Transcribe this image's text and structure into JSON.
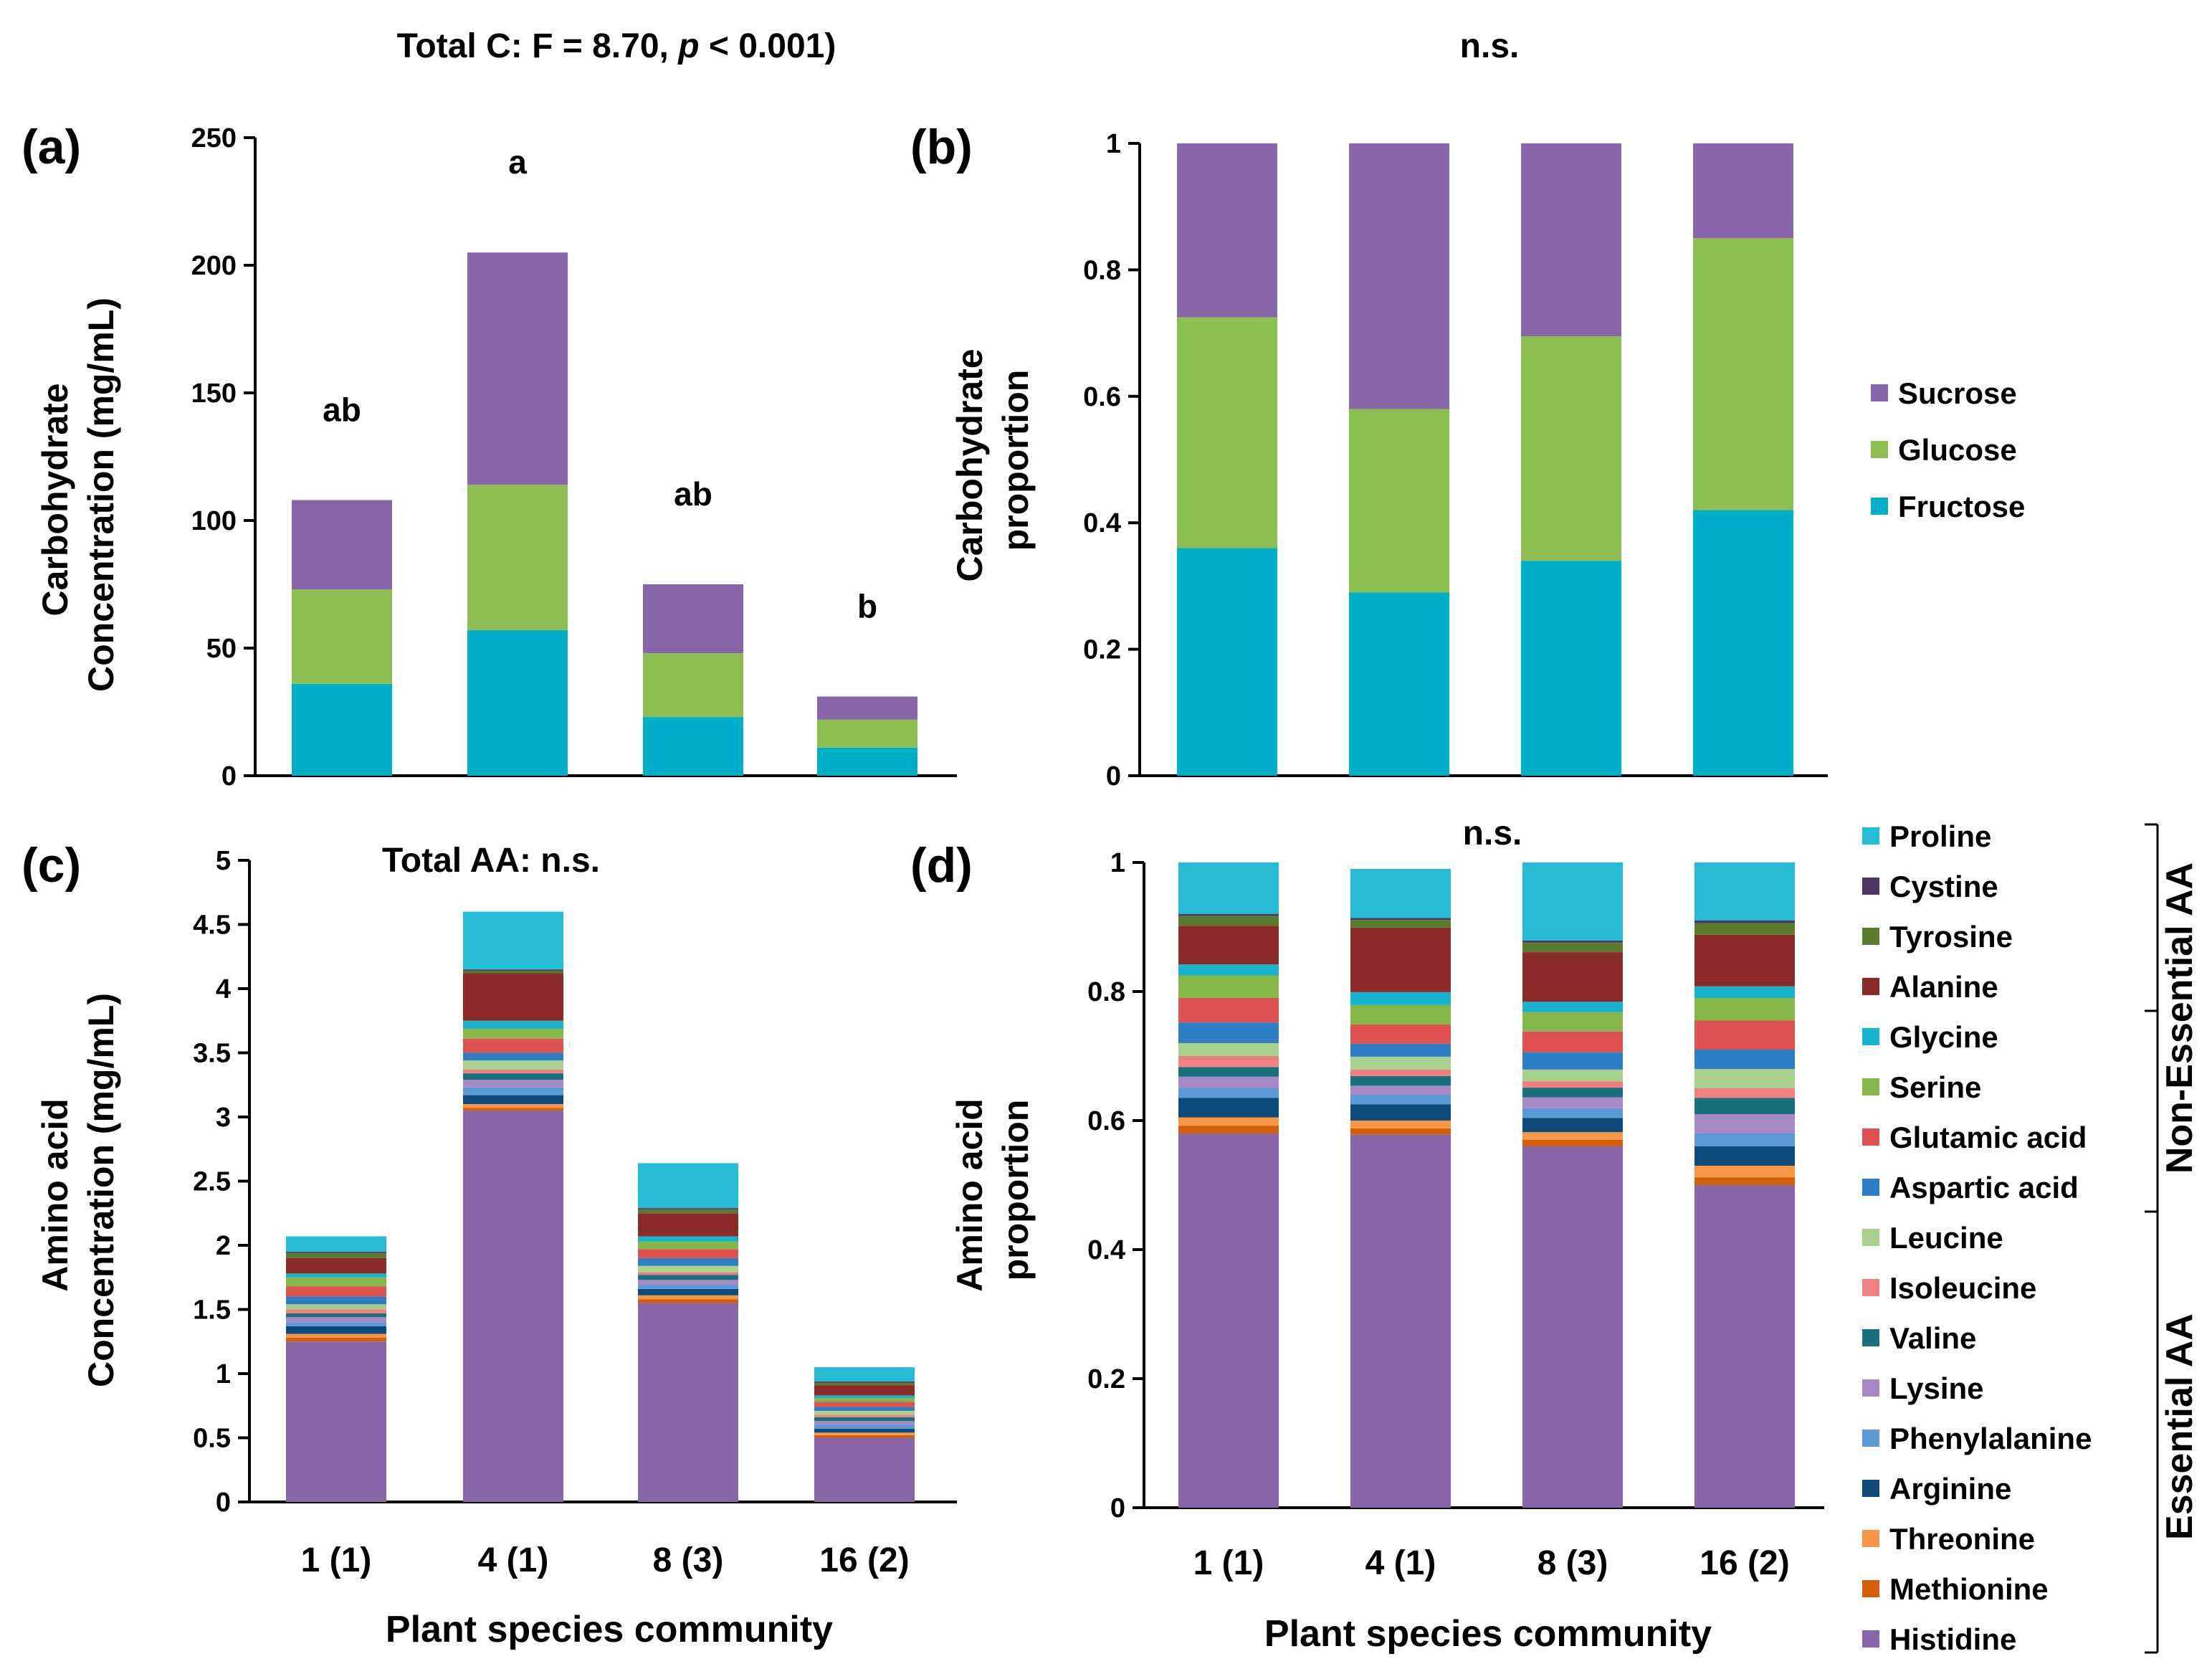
{
  "chart_data": [
    {
      "id": "a",
      "panel_label": "(a)",
      "type": "bar",
      "stacked": true,
      "top_title": "Total C: F = 8.70, p < 0.001)",
      "top_title_parts": [
        "Total C: F = 8.70, ",
        "p",
        " < 0.001)"
      ],
      "ylabel_lines": [
        "Carbohydrate",
        "Concentration (mg/mL)"
      ],
      "ylim": [
        0,
        250
      ],
      "yticks": [
        0,
        50,
        100,
        150,
        200,
        250
      ],
      "tick_labels": [
        "0",
        "50",
        "100",
        "150",
        "200",
        "250"
      ],
      "categories": [
        "1 (1)",
        "4 (1)",
        "8 (3)",
        "16 (2)"
      ],
      "series": [
        {
          "name": "Fructose",
          "color": "#00AEC7",
          "values": [
            36,
            57,
            23,
            11
          ]
        },
        {
          "name": "Glucose",
          "color": "#8DBE52",
          "values": [
            37,
            57,
            25,
            11
          ]
        },
        {
          "name": "Sucrose",
          "color": "#8864A8",
          "values": [
            35,
            91,
            27,
            9
          ]
        }
      ],
      "annotations": [
        "ab",
        "a",
        "ab",
        "b"
      ]
    },
    {
      "id": "b",
      "panel_label": "(b)",
      "type": "bar",
      "stacked": true,
      "top_title": "n.s.",
      "ylabel_lines": [
        "Carbohydrate",
        "proportion"
      ],
      "ylim": [
        0,
        1
      ],
      "yticks": [
        0,
        0.2,
        0.4,
        0.6,
        0.8,
        1
      ],
      "tick_labels": [
        "0",
        "0.2",
        "0.4",
        "0.6",
        "0.8",
        "1"
      ],
      "categories": [
        "1 (1)",
        "4 (1)",
        "8 (3)",
        "16 (2)"
      ],
      "series": [
        {
          "name": "Fructose",
          "color": "#00AEC7",
          "values": [
            0.36,
            0.29,
            0.34,
            0.42
          ]
        },
        {
          "name": "Glucose",
          "color": "#8DBE52",
          "values": [
            0.365,
            0.29,
            0.355,
            0.43
          ]
        },
        {
          "name": "Sucrose",
          "color": "#8864A8",
          "values": [
            0.275,
            0.42,
            0.305,
            0.15
          ]
        }
      ],
      "legend": [
        "Sucrose",
        "Glucose",
        "Fructose"
      ]
    },
    {
      "id": "c",
      "panel_label": "(c)",
      "type": "bar",
      "stacked": true,
      "inner_title": "Total AA: n.s.",
      "ylabel_lines": [
        "Amino acid",
        "Concentration (mg/mL)"
      ],
      "ylim": [
        0,
        5
      ],
      "yticks": [
        0,
        0.5,
        1,
        1.5,
        2,
        2.5,
        3,
        3.5,
        4,
        4.5,
        5
      ],
      "tick_labels": [
        "0",
        "0.5",
        "1",
        "1.5",
        "2",
        "2.5",
        "3",
        "3.5",
        "4",
        "4.5",
        "5"
      ],
      "xlabel": "Plant species community",
      "categories": [
        "1 (1)",
        "4 (1)",
        "8 (3)",
        "16 (2)"
      ],
      "series": [
        {
          "name": "Histidine",
          "color": "#8864A8",
          "values": [
            1.25,
            3.05,
            1.55,
            0.5
          ]
        },
        {
          "name": "Methionine",
          "color": "#D35F0A",
          "values": [
            0.03,
            0.02,
            0.03,
            0.02
          ]
        },
        {
          "name": "Threonine",
          "color": "#F79646",
          "values": [
            0.03,
            0.03,
            0.03,
            0.02
          ]
        },
        {
          "name": "Arginine",
          "color": "#0F4A7C",
          "values": [
            0.06,
            0.07,
            0.05,
            0.03
          ]
        },
        {
          "name": "Phenylalanine",
          "color": "#5B9BD5",
          "values": [
            0.03,
            0.06,
            0.03,
            0.03
          ]
        },
        {
          "name": "Lysine",
          "color": "#A889C8",
          "values": [
            0.04,
            0.06,
            0.04,
            0.03
          ]
        },
        {
          "name": "Valine",
          "color": "#17707C",
          "values": [
            0.03,
            0.05,
            0.04,
            0.03
          ]
        },
        {
          "name": "Isoleucine",
          "color": "#F08080",
          "values": [
            0.03,
            0.03,
            0.02,
            0.02
          ]
        },
        {
          "name": "Leucine",
          "color": "#A9D18E",
          "values": [
            0.04,
            0.07,
            0.05,
            0.03
          ]
        },
        {
          "name": "Aspartic acid",
          "color": "#2E7EC4",
          "values": [
            0.06,
            0.06,
            0.06,
            0.03
          ]
        },
        {
          "name": "Glutamic acid",
          "color": "#E05252",
          "values": [
            0.08,
            0.11,
            0.07,
            0.04
          ]
        },
        {
          "name": "Serine",
          "color": "#84B648",
          "values": [
            0.07,
            0.08,
            0.06,
            0.03
          ]
        },
        {
          "name": "Glycine",
          "color": "#16B4CF",
          "values": [
            0.03,
            0.06,
            0.04,
            0.02
          ]
        },
        {
          "name": "Alanine",
          "color": "#8B2B28",
          "values": [
            0.12,
            0.37,
            0.18,
            0.08
          ]
        },
        {
          "name": "Tyrosine",
          "color": "#5A7B2E",
          "values": [
            0.04,
            0.02,
            0.03,
            0.02
          ]
        },
        {
          "name": "Cystine",
          "color": "#4D3664",
          "values": [
            0.01,
            0.01,
            0.01,
            0.01
          ]
        },
        {
          "name": "Proline",
          "color": "#26BCD5",
          "values": [
            0.12,
            0.45,
            0.35,
            0.11
          ]
        }
      ]
    },
    {
      "id": "d",
      "panel_label": "(d)",
      "type": "bar",
      "stacked": true,
      "top_title": "n.s.",
      "ylabel_lines": [
        "Amino acid",
        "proportion"
      ],
      "ylim": [
        0,
        1
      ],
      "yticks": [
        0,
        0.2,
        0.4,
        0.6,
        0.8,
        1
      ],
      "tick_labels": [
        "0",
        "0.2",
        "0.4",
        "0.6",
        "0.8",
        "1"
      ],
      "xlabel": "Plant species community",
      "categories": [
        "1 (1)",
        "4 (1)",
        "8 (3)",
        "16 (2)"
      ],
      "series": [
        {
          "name": "Histidine",
          "color": "#8864A8",
          "values": [
            0.58,
            0.578,
            0.56,
            0.5
          ]
        },
        {
          "name": "Methionine",
          "color": "#D35F0A",
          "values": [
            0.012,
            0.01,
            0.01,
            0.012
          ]
        },
        {
          "name": "Threonine",
          "color": "#F79646",
          "values": [
            0.013,
            0.012,
            0.012,
            0.018
          ]
        },
        {
          "name": "Arginine",
          "color": "#0F4A7C",
          "values": [
            0.03,
            0.025,
            0.022,
            0.03
          ]
        },
        {
          "name": "Phenylalanine",
          "color": "#5B9BD5",
          "values": [
            0.015,
            0.015,
            0.015,
            0.02
          ]
        },
        {
          "name": "Lysine",
          "color": "#A889C8",
          "values": [
            0.018,
            0.014,
            0.017,
            0.03
          ]
        },
        {
          "name": "Valine",
          "color": "#17707C",
          "values": [
            0.015,
            0.015,
            0.015,
            0.025
          ]
        },
        {
          "name": "Isoleucine",
          "color": "#F08080",
          "values": [
            0.017,
            0.01,
            0.01,
            0.015
          ]
        },
        {
          "name": "Leucine",
          "color": "#A9D18E",
          "values": [
            0.02,
            0.02,
            0.018,
            0.03
          ]
        },
        {
          "name": "Aspartic acid",
          "color": "#2E7EC4",
          "values": [
            0.032,
            0.02,
            0.027,
            0.03
          ]
        },
        {
          "name": "Glutamic acid",
          "color": "#E05252",
          "values": [
            0.038,
            0.03,
            0.032,
            0.045
          ]
        },
        {
          "name": "Serine",
          "color": "#84B648",
          "values": [
            0.035,
            0.03,
            0.03,
            0.035
          ]
        },
        {
          "name": "Glycine",
          "color": "#16B4CF",
          "values": [
            0.017,
            0.02,
            0.016,
            0.018
          ]
        },
        {
          "name": "Alanine",
          "color": "#8B2B28",
          "values": [
            0.06,
            0.1,
            0.077,
            0.08
          ]
        },
        {
          "name": "Tyrosine",
          "color": "#5A7B2E",
          "values": [
            0.015,
            0.012,
            0.015,
            0.018
          ]
        },
        {
          "name": "Cystine",
          "color": "#4D3664",
          "values": [
            0.003,
            0.003,
            0.003,
            0.004
          ]
        },
        {
          "name": "Proline",
          "color": "#26BCD5",
          "values": [
            0.08,
            0.076,
            0.121,
            0.09
          ]
        }
      ],
      "legend": [
        "Proline",
        "Cystine",
        "Tyrosine",
        "Alanine",
        "Glycine",
        "Serine",
        "Glutamic acid",
        "Aspartic acid",
        "Leucine",
        "Isoleucine",
        "Valine",
        "Lysine",
        "Phenylalanine",
        "Arginine",
        "Threonine",
        "Methionine",
        "Histidine"
      ],
      "groups": [
        "Non-Essential AA",
        "Essential AA"
      ]
    }
  ]
}
